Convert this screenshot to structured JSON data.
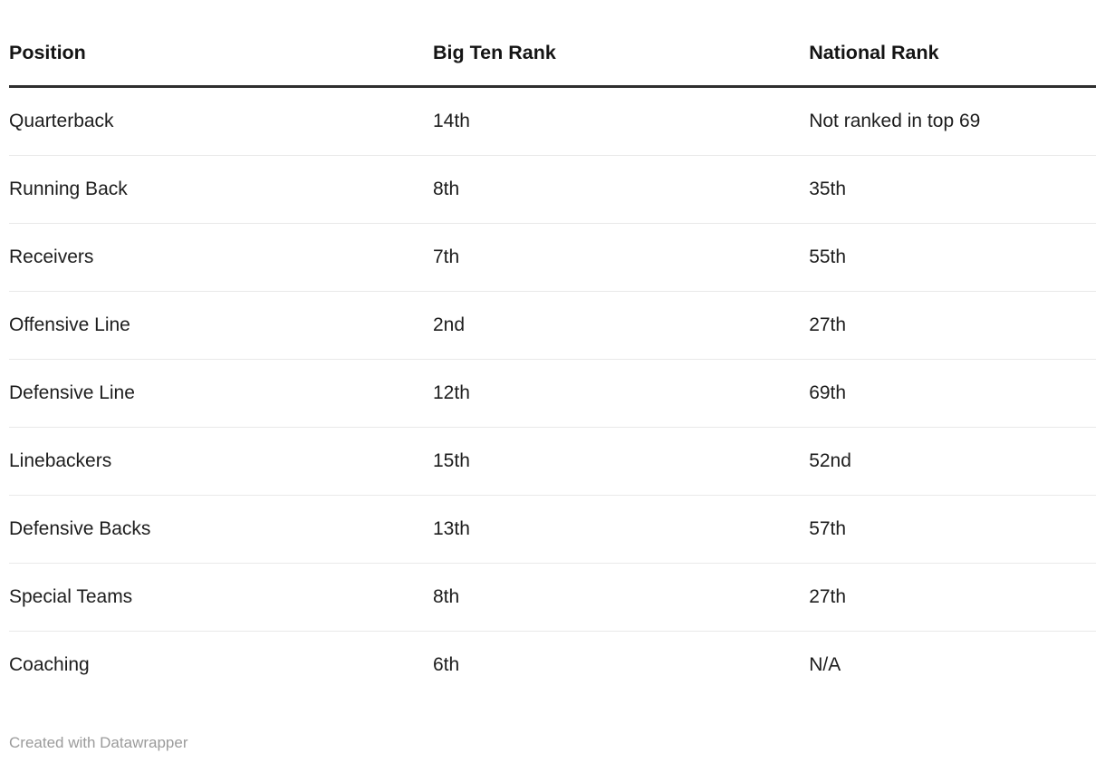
{
  "chart_data": {
    "type": "table",
    "columns": [
      "Position",
      "Big Ten Rank",
      "National Rank"
    ],
    "rows": [
      [
        "Quarterback",
        "14th",
        "Not ranked in top 69"
      ],
      [
        "Running Back",
        "8th",
        "35th"
      ],
      [
        "Receivers",
        "7th",
        "55th"
      ],
      [
        "Offensive Line",
        "2nd",
        "27th"
      ],
      [
        "Defensive Line",
        "12th",
        "69th"
      ],
      [
        "Linebackers",
        "15th",
        "52nd"
      ],
      [
        "Defensive Backs",
        "13th",
        "57th"
      ],
      [
        "Special Teams",
        "8th",
        "27th"
      ],
      [
        "Coaching",
        "6th",
        "N/A"
      ]
    ],
    "title": "",
    "legend": "none",
    "grid": "horizontal-rules"
  },
  "footer": {
    "attribution": "Created with Datawrapper"
  },
  "colors": {
    "background": "#ffffff",
    "text": "#1d1d1d",
    "header_text": "#141414",
    "header_rule": "#2e2e2e",
    "row_rule": "#e9e9e9",
    "attribution_text": "#9b9b9b"
  }
}
